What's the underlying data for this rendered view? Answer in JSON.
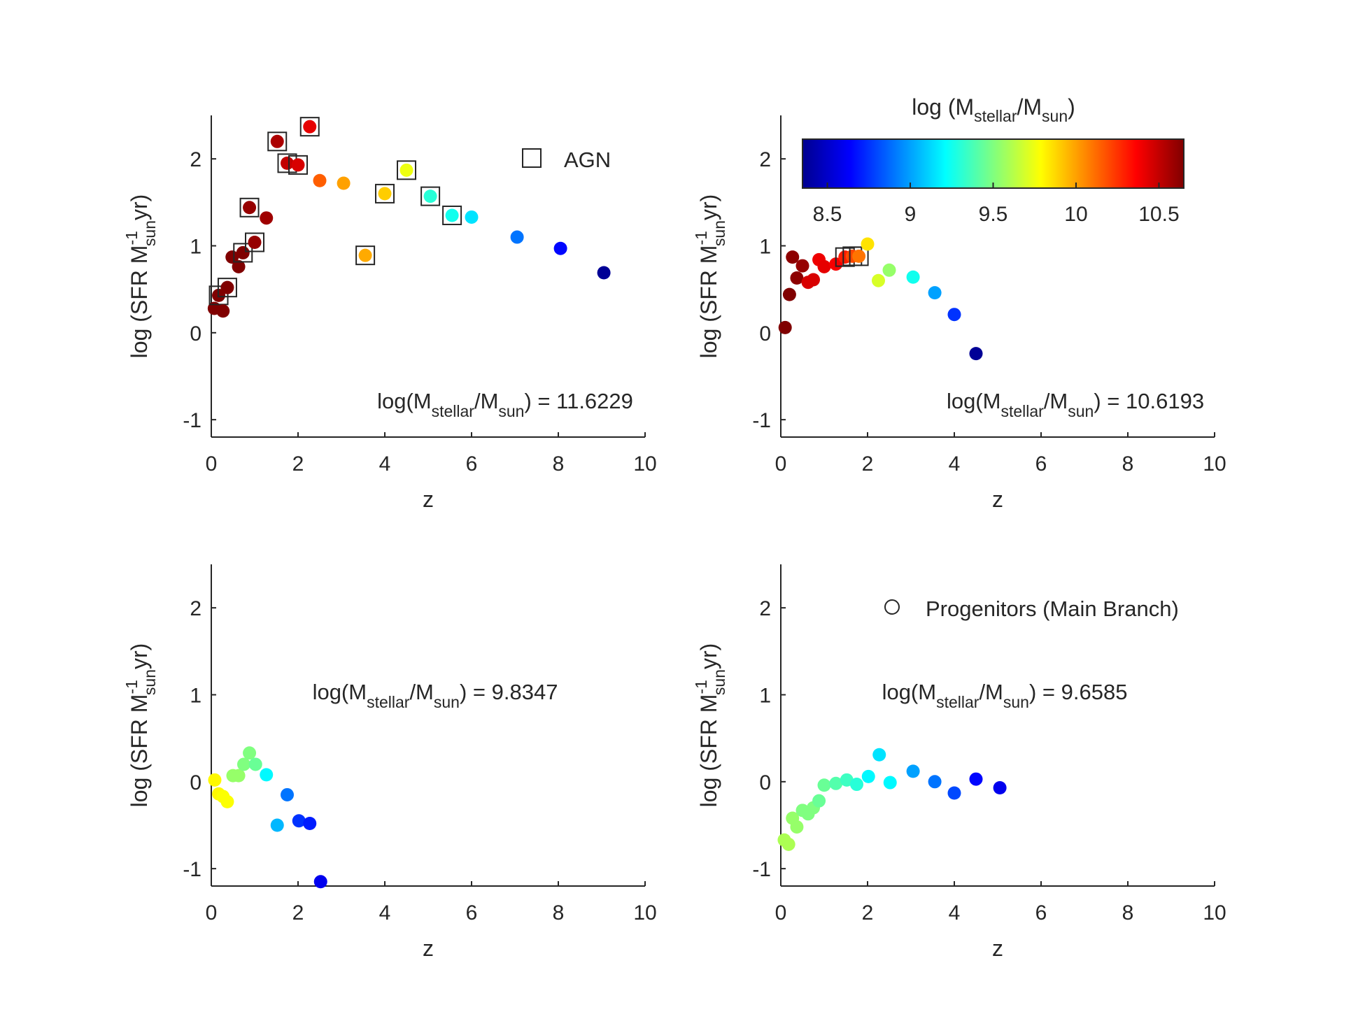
{
  "figure": {
    "colorbar": {
      "title": "log (M",
      "title_sub": "stellar",
      "title_mid": "/M",
      "title_sub2": "sun",
      "title_end": ")",
      "range": [
        8.35,
        10.65
      ],
      "ticks": [
        "8.5",
        "9",
        "9.5",
        "10",
        "10.5"
      ],
      "tick_values": [
        8.5,
        9,
        9.5,
        10,
        10.5
      ],
      "colormap": "jet"
    },
    "legends": {
      "agn": "AGN",
      "progenitors": "Progenitors (Main Branch)"
    }
  },
  "chart_data": [
    {
      "type": "scatter",
      "panel": "top-left",
      "xlabel": "z",
      "ylabel": "log (SFR M",
      "ylabel_sup": "-1",
      "ylabel_sub": "sun",
      "ylabel_end": "yr)",
      "xlim": [
        0,
        10
      ],
      "ylim": [
        -1.2,
        2.5
      ],
      "xticks": [
        "0",
        "2",
        "4",
        "6",
        "8",
        "10"
      ],
      "yticks": [
        "-1",
        "0",
        "1",
        "2"
      ],
      "annotation": {
        "pre": "log(M",
        "sub1": "stellar",
        "mid": "/M",
        "sub2": "sun",
        "post": ") = 11.6229"
      },
      "legend": "AGN",
      "points": [
        {
          "z": 0.07,
          "sfr": 0.28,
          "mass": 10.65,
          "agn": false
        },
        {
          "z": 0.17,
          "sfr": 0.43,
          "mass": 10.65,
          "agn": true
        },
        {
          "z": 0.27,
          "sfr": 0.25,
          "mass": 10.65,
          "agn": false
        },
        {
          "z": 0.37,
          "sfr": 0.52,
          "mass": 10.65,
          "agn": true
        },
        {
          "z": 0.48,
          "sfr": 0.87,
          "mass": 10.65,
          "agn": false
        },
        {
          "z": 0.63,
          "sfr": 0.76,
          "mass": 10.65,
          "agn": false
        },
        {
          "z": 0.73,
          "sfr": 0.92,
          "mass": 10.65,
          "agn": true
        },
        {
          "z": 0.88,
          "sfr": 1.44,
          "mass": 10.6,
          "agn": true
        },
        {
          "z": 1.0,
          "sfr": 1.04,
          "mass": 10.6,
          "agn": true
        },
        {
          "z": 1.27,
          "sfr": 1.32,
          "mass": 10.58,
          "agn": false
        },
        {
          "z": 1.52,
          "sfr": 2.2,
          "mass": 10.55,
          "agn": true
        },
        {
          "z": 1.75,
          "sfr": 1.95,
          "mass": 10.5,
          "agn": true
        },
        {
          "z": 2.0,
          "sfr": 1.93,
          "mass": 10.45,
          "agn": true
        },
        {
          "z": 2.27,
          "sfr": 2.37,
          "mass": 10.42,
          "agn": true
        },
        {
          "z": 2.5,
          "sfr": 1.75,
          "mass": 10.15,
          "agn": false
        },
        {
          "z": 3.05,
          "sfr": 1.72,
          "mass": 10.0,
          "agn": false
        },
        {
          "z": 3.55,
          "sfr": 0.89,
          "mass": 9.98,
          "agn": true
        },
        {
          "z": 4.0,
          "sfr": 1.6,
          "mass": 9.9,
          "agn": true
        },
        {
          "z": 4.5,
          "sfr": 1.87,
          "mass": 9.75,
          "agn": true
        },
        {
          "z": 5.05,
          "sfr": 1.57,
          "mass": 9.3,
          "agn": true
        },
        {
          "z": 5.55,
          "sfr": 1.35,
          "mass": 9.25,
          "agn": true
        },
        {
          "z": 6.0,
          "sfr": 1.33,
          "mass": 9.15,
          "agn": false
        },
        {
          "z": 7.05,
          "sfr": 1.1,
          "mass": 8.9,
          "agn": false
        },
        {
          "z": 8.05,
          "sfr": 0.97,
          "mass": 8.65,
          "agn": false
        },
        {
          "z": 9.05,
          "sfr": 0.69,
          "mass": 8.4,
          "agn": false
        }
      ]
    },
    {
      "type": "scatter",
      "panel": "top-right",
      "xlabel": "z",
      "ylabel": "log (SFR M",
      "ylabel_sup": "-1",
      "ylabel_sub": "sun",
      "ylabel_end": "yr)",
      "xlim": [
        0,
        10
      ],
      "ylim": [
        -1.2,
        2.5
      ],
      "xticks": [
        "0",
        "2",
        "4",
        "6",
        "8",
        "10"
      ],
      "yticks": [
        "-1",
        "0",
        "1",
        "2"
      ],
      "annotation": {
        "pre": "log(M",
        "sub1": "stellar",
        "mid": "/M",
        "sub2": "sun",
        "post": ") = 10.6193"
      },
      "points": [
        {
          "z": 0.1,
          "sfr": 0.06,
          "mass": 10.65,
          "agn": false
        },
        {
          "z": 0.2,
          "sfr": 0.44,
          "mass": 10.65,
          "agn": false
        },
        {
          "z": 0.27,
          "sfr": 0.87,
          "mass": 10.62,
          "agn": false
        },
        {
          "z": 0.37,
          "sfr": 0.63,
          "mass": 10.62,
          "agn": false
        },
        {
          "z": 0.5,
          "sfr": 0.77,
          "mass": 10.6,
          "agn": false
        },
        {
          "z": 0.63,
          "sfr": 0.58,
          "mass": 10.45,
          "agn": false
        },
        {
          "z": 0.75,
          "sfr": 0.61,
          "mass": 10.45,
          "agn": false
        },
        {
          "z": 0.88,
          "sfr": 0.84,
          "mass": 10.4,
          "agn": false
        },
        {
          "z": 1.0,
          "sfr": 0.76,
          "mass": 10.42,
          "agn": false
        },
        {
          "z": 1.27,
          "sfr": 0.79,
          "mass": 10.38,
          "agn": false
        },
        {
          "z": 1.48,
          "sfr": 0.87,
          "mass": 10.3,
          "agn": true
        },
        {
          "z": 1.65,
          "sfr": 0.88,
          "mass": 10.2,
          "agn": true
        },
        {
          "z": 1.8,
          "sfr": 0.88,
          "mass": 10.1,
          "agn": true
        },
        {
          "z": 2.0,
          "sfr": 1.02,
          "mass": 9.85,
          "agn": false
        },
        {
          "z": 2.25,
          "sfr": 0.6,
          "mass": 9.7,
          "agn": false
        },
        {
          "z": 2.5,
          "sfr": 0.72,
          "mass": 9.55,
          "agn": false
        },
        {
          "z": 3.05,
          "sfr": 0.64,
          "mass": 9.25,
          "agn": false
        },
        {
          "z": 3.55,
          "sfr": 0.46,
          "mass": 9.0,
          "agn": false
        },
        {
          "z": 4.0,
          "sfr": 0.21,
          "mass": 8.75,
          "agn": false
        },
        {
          "z": 4.5,
          "sfr": -0.24,
          "mass": 8.4,
          "agn": false
        }
      ]
    },
    {
      "type": "scatter",
      "panel": "bottom-left",
      "xlabel": "z",
      "ylabel": "log (SFR M",
      "ylabel_sup": "-1",
      "ylabel_sub": "sun",
      "ylabel_end": "yr)",
      "xlim": [
        0,
        10
      ],
      "ylim": [
        -1.2,
        2.5
      ],
      "xticks": [
        "0",
        "2",
        "4",
        "6",
        "8",
        "10"
      ],
      "yticks": [
        "-1",
        "0",
        "1",
        "2"
      ],
      "annotation": {
        "pre": "log(M",
        "sub1": "stellar",
        "mid": "/M",
        "sub2": "sun",
        "post": ") = 9.8347"
      },
      "points": [
        {
          "z": 0.08,
          "sfr": 0.02,
          "mass": 9.8,
          "agn": false
        },
        {
          "z": 0.17,
          "sfr": -0.14,
          "mass": 9.8,
          "agn": false
        },
        {
          "z": 0.27,
          "sfr": -0.17,
          "mass": 9.78,
          "agn": false
        },
        {
          "z": 0.37,
          "sfr": -0.23,
          "mass": 9.78,
          "agn": false
        },
        {
          "z": 0.5,
          "sfr": 0.07,
          "mass": 9.55,
          "agn": false
        },
        {
          "z": 0.63,
          "sfr": 0.07,
          "mass": 9.55,
          "agn": false
        },
        {
          "z": 0.75,
          "sfr": 0.2,
          "mass": 9.5,
          "agn": false
        },
        {
          "z": 0.88,
          "sfr": 0.33,
          "mass": 9.5,
          "agn": false
        },
        {
          "z": 1.02,
          "sfr": 0.2,
          "mass": 9.45,
          "agn": false
        },
        {
          "z": 1.27,
          "sfr": 0.08,
          "mass": 9.2,
          "agn": false
        },
        {
          "z": 1.52,
          "sfr": -0.5,
          "mass": 9.05,
          "agn": false
        },
        {
          "z": 1.75,
          "sfr": -0.15,
          "mass": 8.9,
          "agn": false
        },
        {
          "z": 2.02,
          "sfr": -0.45,
          "mass": 8.75,
          "agn": false
        },
        {
          "z": 2.27,
          "sfr": -0.48,
          "mass": 8.7,
          "agn": false
        },
        {
          "z": 2.52,
          "sfr": -1.15,
          "mass": 8.6,
          "agn": false
        }
      ]
    },
    {
      "type": "scatter",
      "panel": "bottom-right",
      "xlabel": "z",
      "ylabel": "log (SFR M",
      "ylabel_sup": "-1",
      "ylabel_sub": "sun",
      "ylabel_end": "yr)",
      "xlim": [
        0,
        10
      ],
      "ylim": [
        -1.2,
        2.5
      ],
      "xticks": [
        "0",
        "2",
        "4",
        "6",
        "8",
        "10"
      ],
      "yticks": [
        "-1",
        "0",
        "1",
        "2"
      ],
      "annotation": {
        "pre": "log(M",
        "sub1": "stellar",
        "mid": "/M",
        "sub2": "sun",
        "post": ") = 9.6585"
      },
      "legend": "Progenitors (Main Branch)",
      "points": [
        {
          "z": 0.08,
          "sfr": -0.67,
          "mass": 9.6,
          "agn": false
        },
        {
          "z": 0.18,
          "sfr": -0.72,
          "mass": 9.6,
          "agn": false
        },
        {
          "z": 0.27,
          "sfr": -0.42,
          "mass": 9.55,
          "agn": false
        },
        {
          "z": 0.37,
          "sfr": -0.52,
          "mass": 9.55,
          "agn": false
        },
        {
          "z": 0.5,
          "sfr": -0.33,
          "mass": 9.5,
          "agn": false
        },
        {
          "z": 0.63,
          "sfr": -0.37,
          "mass": 9.5,
          "agn": false
        },
        {
          "z": 0.75,
          "sfr": -0.3,
          "mass": 9.5,
          "agn": false
        },
        {
          "z": 0.88,
          "sfr": -0.22,
          "mass": 9.45,
          "agn": false
        },
        {
          "z": 1.0,
          "sfr": -0.04,
          "mass": 9.45,
          "agn": false
        },
        {
          "z": 1.27,
          "sfr": -0.02,
          "mass": 9.4,
          "agn": false
        },
        {
          "z": 1.52,
          "sfr": 0.02,
          "mass": 9.35,
          "agn": false
        },
        {
          "z": 1.75,
          "sfr": -0.03,
          "mass": 9.3,
          "agn": false
        },
        {
          "z": 2.02,
          "sfr": 0.06,
          "mass": 9.2,
          "agn": false
        },
        {
          "z": 2.27,
          "sfr": 0.31,
          "mass": 9.15,
          "agn": false
        },
        {
          "z": 2.52,
          "sfr": -0.01,
          "mass": 9.2,
          "agn": false
        },
        {
          "z": 3.05,
          "sfr": 0.12,
          "mass": 9.0,
          "agn": false
        },
        {
          "z": 3.55,
          "sfr": 0.0,
          "mass": 8.9,
          "agn": false
        },
        {
          "z": 4.0,
          "sfr": -0.13,
          "mass": 8.8,
          "agn": false
        },
        {
          "z": 4.5,
          "sfr": 0.03,
          "mass": 8.65,
          "agn": false
        },
        {
          "z": 5.05,
          "sfr": -0.07,
          "mass": 8.6,
          "agn": false
        }
      ]
    }
  ]
}
